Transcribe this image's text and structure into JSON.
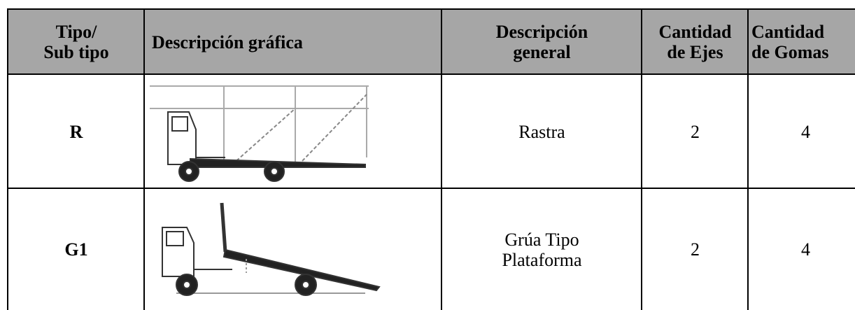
{
  "table": {
    "header": [
      [
        "Tipo/",
        "Sub tipo"
      ],
      [
        "Descripción gráfica"
      ],
      [
        "Descripción",
        "general"
      ],
      [
        "Cantidad",
        "de Ejes"
      ],
      [
        "Cantidad",
        "de Gomas"
      ]
    ],
    "rows": [
      [
        "R",
        [
          "Rastra"
        ],
        2,
        4
      ],
      [
        "G1",
        [
          "Grúa Tipo",
          "Plataforma"
        ],
        2,
        4
      ]
    ]
  }
}
